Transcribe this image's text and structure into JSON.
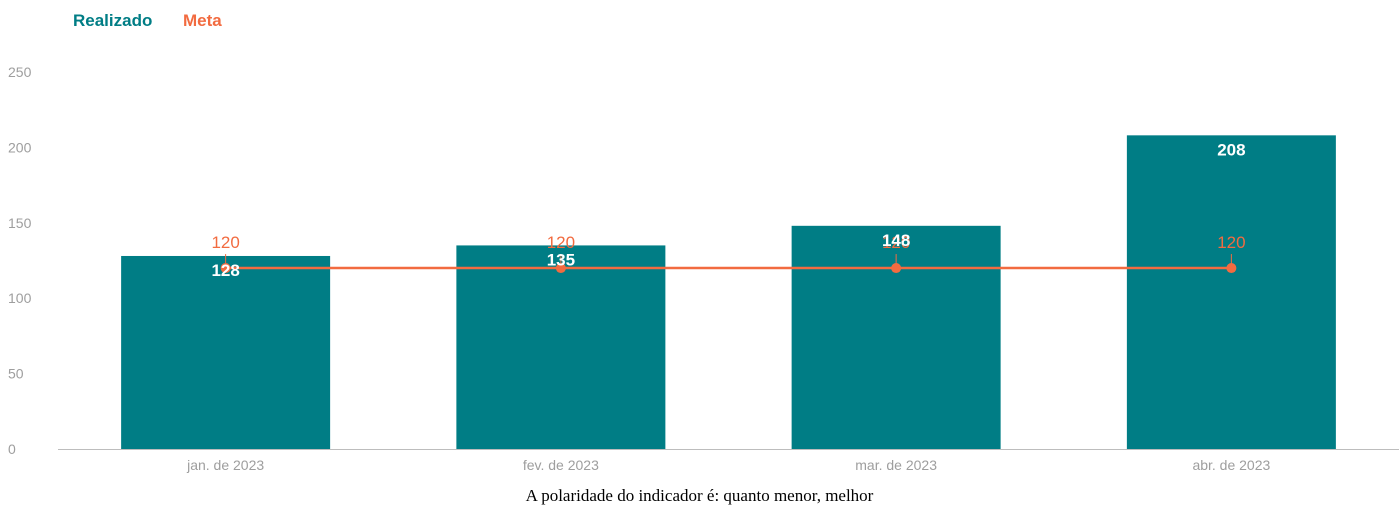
{
  "colors": {
    "realizado": "#007D85",
    "meta": "#F26B40",
    "axis_line": "#bdbdbd",
    "tick_text": "#9e9e9e"
  },
  "legend": {
    "realizado_label": "Realizado",
    "meta_label": "Meta"
  },
  "footnote": "A polaridade do indicador é: quanto menor, melhor",
  "chart_data": {
    "type": "bar",
    "categories": [
      "jan. de 2023",
      "fev. de 2023",
      "mar. de 2023",
      "abr. de 2023"
    ],
    "series": [
      {
        "name": "Realizado",
        "type": "bar",
        "values": [
          128,
          135,
          148,
          208
        ]
      },
      {
        "name": "Meta",
        "type": "line",
        "values": [
          120,
          120,
          120,
          120
        ]
      }
    ],
    "y_ticks": [
      0,
      50,
      100,
      150,
      200,
      250
    ],
    "ylim": [
      0,
      250
    ],
    "legend_position": "top-left",
    "grid": false
  }
}
